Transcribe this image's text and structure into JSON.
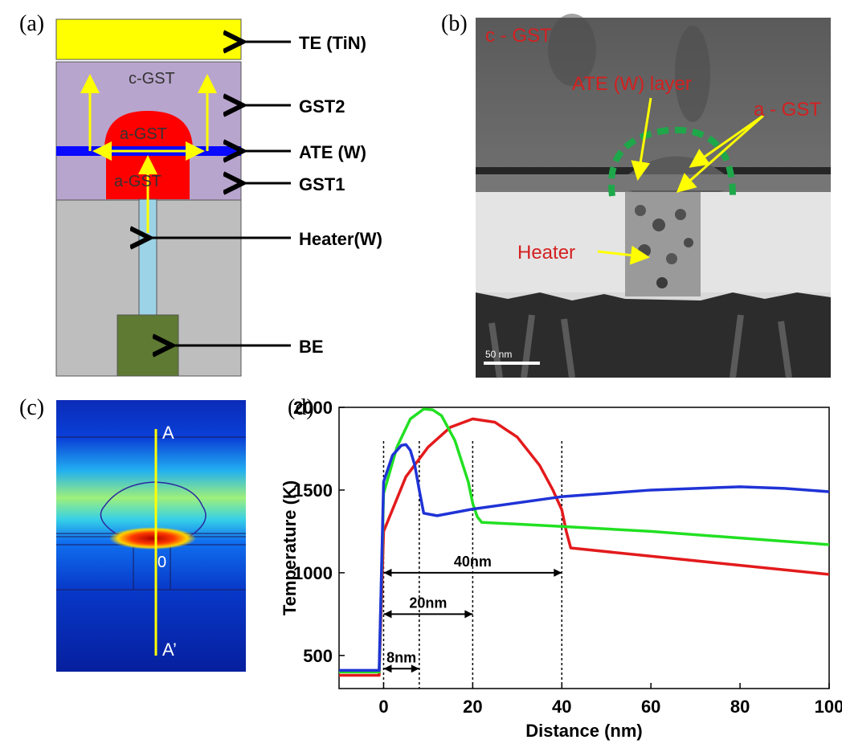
{
  "panel_labels": {
    "a": "(a)",
    "b": "(b)",
    "c": "(c)",
    "d": "(d)"
  },
  "schematic": {
    "layers": {
      "cgst": "c-GST",
      "agst_top": "a-GST",
      "agst_bottom": "a-GST"
    },
    "annotations": [
      "TE (TiN)",
      "GST2",
      "ATE (W)",
      "GST1",
      "Heater(W)",
      "BE"
    ],
    "colors": {
      "te": "#ffff00",
      "gst": "#b8a5cd",
      "agst": "#ff0000",
      "ate": "#0000ff",
      "heater": "#9dd3e6",
      "be": "#5f7a33",
      "bulk": "#bebebe"
    }
  },
  "tem": {
    "labels": {
      "cgst": "c - GST",
      "ate_layer": "ATE (W) layer",
      "agst": "a - GST",
      "heater": "Heater"
    },
    "scale_bar": "50 nm"
  },
  "simulation": {
    "labels": {
      "a": "A",
      "origin": "0",
      "a_prime": "A’"
    }
  },
  "chart_data": {
    "type": "line",
    "title": "",
    "xlabel": "Distance (nm)",
    "ylabel": "Temperature (K)",
    "xlim": [
      -10,
      100
    ],
    "ylim": [
      300,
      2000
    ],
    "xticks": [
      0,
      20,
      40,
      60,
      80,
      100
    ],
    "yticks": [
      500,
      1000,
      1500,
      2000
    ],
    "vlines": [
      0,
      8,
      20,
      40
    ],
    "annotations": [
      {
        "label": "40nm",
        "from": 0,
        "to": 40,
        "y": 1000
      },
      {
        "label": "20nm",
        "from": 0,
        "to": 20,
        "y": 750
      },
      {
        "label": "8nm",
        "from": 0,
        "to": 8,
        "y": 420
      }
    ],
    "series": [
      {
        "name": "40nm",
        "color": "#e31a1c",
        "x": [
          -10,
          -1,
          0,
          5,
          10,
          15,
          20,
          25,
          30,
          35,
          38,
          40,
          41,
          42,
          60,
          80,
          100
        ],
        "y": [
          380,
          380,
          1250,
          1580,
          1760,
          1880,
          1930,
          1910,
          1820,
          1650,
          1500,
          1380,
          1250,
          1150,
          1100,
          1045,
          990
        ]
      },
      {
        "name": "20nm",
        "color": "#22e022",
        "x": [
          -10,
          -1,
          0,
          3,
          6,
          9,
          11,
          13,
          16,
          19,
          20,
          21,
          22,
          40,
          60,
          80,
          100
        ],
        "y": [
          400,
          400,
          1480,
          1760,
          1930,
          1990,
          1985,
          1950,
          1800,
          1550,
          1420,
          1340,
          1305,
          1280,
          1250,
          1210,
          1170
        ]
      },
      {
        "name": "8nm",
        "color": "#1f33d6",
        "x": [
          -10,
          -1,
          0,
          2,
          4,
          5,
          6,
          7,
          8,
          9,
          12,
          20,
          40,
          60,
          80,
          90,
          100
        ],
        "y": [
          410,
          410,
          1550,
          1710,
          1770,
          1775,
          1740,
          1650,
          1500,
          1360,
          1345,
          1385,
          1460,
          1500,
          1520,
          1510,
          1490
        ]
      }
    ]
  }
}
